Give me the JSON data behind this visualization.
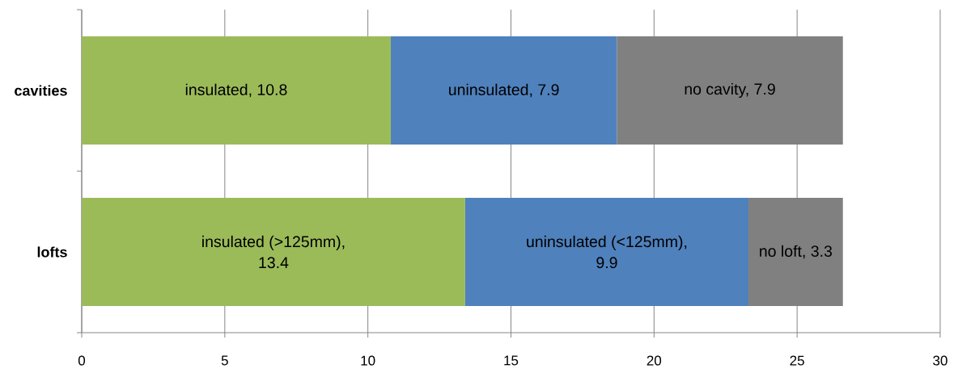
{
  "chart_data": {
    "type": "bar",
    "orientation": "horizontal",
    "stacked": true,
    "categories": [
      "cavities",
      "lofts"
    ],
    "series": [
      {
        "color": "#9bbb59",
        "values": [
          10.8,
          13.4
        ],
        "value_labels": [
          "insulated, 10.8",
          "insulated (>125mm), 13.4"
        ]
      },
      {
        "color": "#4f81bd",
        "values": [
          7.9,
          9.9
        ],
        "value_labels": [
          "uninsulated, 7.9",
          "uninsulated (<125mm), 9.9"
        ]
      },
      {
        "color": "#808080",
        "values": [
          7.9,
          3.3
        ],
        "value_labels": [
          "no cavity, 7.9",
          "no loft, 3.3"
        ]
      }
    ],
    "xlim": [
      0,
      30
    ],
    "xticks": [
      0,
      5,
      10,
      15,
      20,
      25,
      30
    ],
    "grid": "x"
  }
}
